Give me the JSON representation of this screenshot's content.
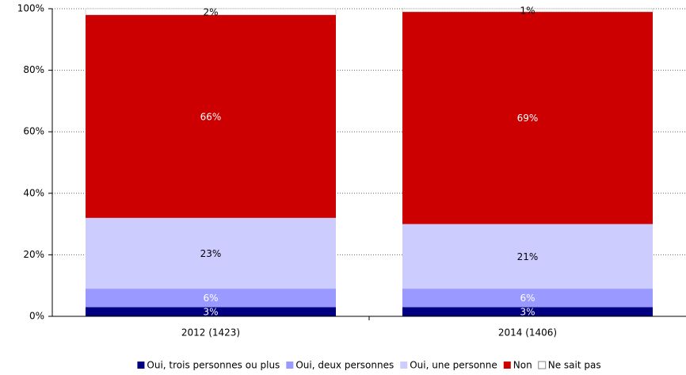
{
  "chart_data": {
    "type": "stacked_bar",
    "categories": [
      "2012 (1423)",
      "2014 (1406)"
    ],
    "series": [
      {
        "name": "Oui, trois personnes ou plus",
        "color": "#000080",
        "values": [
          3,
          3
        ],
        "value_labels": [
          "3%",
          "3%"
        ]
      },
      {
        "name": "Oui, deux personnes",
        "color": "#9999ff",
        "values": [
          6,
          6
        ],
        "value_labels": [
          "6%",
          "6%"
        ]
      },
      {
        "name": "Oui, une personne",
        "color": "#ccccff",
        "values": [
          23,
          21
        ],
        "value_labels": [
          "23%",
          "21%"
        ]
      },
      {
        "name": "Non",
        "color": "#cc0000",
        "values": [
          66,
          69
        ],
        "value_labels": [
          "66%",
          "69%"
        ]
      },
      {
        "name": "Ne sait pas",
        "color": "#ffffff",
        "values": [
          2,
          1
        ],
        "value_labels": [
          "2%",
          "1%"
        ]
      }
    ],
    "ylim": [
      0,
      100
    ],
    "yticks": [
      {
        "value": 0,
        "label": "0%"
      },
      {
        "value": 20,
        "label": "20%"
      },
      {
        "value": 40,
        "label": "40%"
      },
      {
        "value": 60,
        "label": "60%"
      },
      {
        "value": 80,
        "label": "80%"
      },
      {
        "value": 100,
        "label": "100%"
      }
    ],
    "grid": true,
    "legend": "bottom"
  }
}
